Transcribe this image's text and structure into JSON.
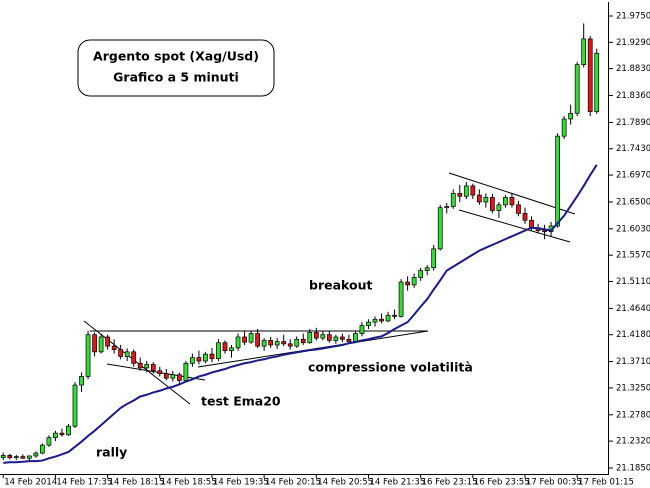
{
  "chart_data": {
    "type": "candlestick",
    "title": "Argento spot (Xag/Usd)",
    "subtitle": "Grafico a 5 minuti",
    "annotations": [
      "rally",
      "test Ema20",
      "breakout",
      "compressione volatilità"
    ],
    "categories": [
      "14 Feb 2014",
      null,
      null,
      null,
      null,
      null,
      null,
      null,
      "14 Feb 17:35",
      null,
      null,
      null,
      null,
      null,
      null,
      null,
      "14 Feb 18:15",
      null,
      null,
      null,
      null,
      null,
      null,
      null,
      "14 Feb 18:55",
      null,
      null,
      null,
      null,
      null,
      null,
      null,
      "14 Feb 19:35",
      null,
      null,
      null,
      null,
      null,
      null,
      null,
      "14 Feb 20:15",
      null,
      null,
      null,
      null,
      null,
      null,
      null,
      "14 Feb 20:55",
      null,
      null,
      null,
      null,
      null,
      null,
      null,
      "14 Feb 21:35",
      null,
      null,
      null,
      null,
      null,
      null,
      null,
      "16 Feb 23:15",
      null,
      null,
      null,
      null,
      null,
      null,
      null,
      "16 Feb 23:55",
      null,
      null,
      null,
      null,
      null,
      null,
      null,
      "17 Feb 00:35",
      null,
      null,
      null,
      null,
      null,
      null,
      null,
      "17 Feb 01:15",
      null,
      null,
      null
    ],
    "up_color": "#33dd33",
    "down_color": "#e01818",
    "open": [
      21.203,
      21.207,
      21.203,
      21.205,
      21.202,
      21.206,
      21.211,
      21.225,
      21.238,
      21.246,
      21.243,
      21.258,
      21.33,
      21.345,
      21.418,
      21.388,
      21.414,
      21.398,
      21.392,
      21.38,
      21.388,
      21.368,
      21.36,
      21.366,
      21.355,
      21.35,
      21.342,
      21.348,
      21.338,
      21.368,
      21.378,
      21.372,
      21.384,
      21.376,
      21.404,
      21.39,
      21.395,
      21.414,
      21.405,
      21.42,
      21.398,
      21.408,
      21.4,
      21.406,
      21.402,
      21.398,
      21.41,
      21.404,
      21.422,
      21.412,
      21.418,
      21.408,
      21.414,
      21.41,
      21.406,
      21.42,
      21.434,
      21.44,
      21.445,
      21.442,
      21.452,
      21.45,
      21.51,
      21.505,
      21.518,
      21.53,
      21.535,
      21.568,
      21.64,
      21.642,
      21.665,
      21.66,
      21.678,
      21.662,
      21.65,
      21.658,
      21.635,
      21.645,
      21.658,
      21.645,
      21.63,
      21.618,
      21.605,
      21.6,
      21.598,
      21.608,
      21.765,
      21.795,
      21.805,
      21.89,
      21.935,
      21.808
    ],
    "high": [
      21.212,
      21.21,
      21.208,
      21.209,
      21.207,
      21.214,
      21.228,
      21.242,
      21.25,
      21.254,
      21.262,
      21.335,
      21.352,
      21.425,
      21.422,
      21.42,
      21.418,
      21.41,
      21.4,
      21.394,
      21.392,
      21.378,
      21.372,
      21.37,
      21.362,
      21.358,
      21.355,
      21.352,
      21.372,
      21.385,
      21.39,
      21.388,
      21.395,
      21.41,
      21.408,
      21.4,
      21.42,
      21.425,
      21.425,
      21.428,
      21.412,
      21.414,
      21.412,
      21.418,
      21.41,
      21.415,
      21.42,
      21.428,
      21.43,
      21.425,
      21.424,
      21.418,
      21.42,
      21.418,
      21.425,
      21.44,
      21.445,
      21.45,
      21.455,
      21.458,
      21.462,
      21.515,
      21.52,
      21.525,
      21.535,
      21.54,
      21.575,
      21.645,
      21.648,
      21.672,
      21.68,
      21.685,
      21.682,
      21.672,
      21.665,
      21.664,
      21.65,
      21.662,
      21.665,
      21.652,
      21.64,
      21.625,
      21.612,
      21.61,
      21.615,
      21.77,
      21.8,
      21.82,
      21.895,
      21.962,
      21.94,
      21.918
    ],
    "low": [
      21.199,
      21.2,
      21.199,
      21.201,
      21.198,
      21.203,
      21.209,
      21.222,
      21.232,
      21.24,
      21.241,
      21.255,
      21.318,
      21.34,
      21.38,
      21.385,
      21.392,
      21.385,
      21.375,
      21.372,
      21.362,
      21.355,
      21.352,
      21.35,
      21.345,
      21.338,
      21.336,
      21.33,
      21.336,
      21.362,
      21.366,
      21.368,
      21.37,
      21.372,
      21.385,
      21.378,
      21.39,
      21.4,
      21.402,
      21.395,
      21.39,
      21.395,
      21.393,
      21.398,
      21.392,
      21.395,
      21.4,
      21.402,
      21.408,
      21.408,
      21.404,
      21.402,
      21.405,
      21.402,
      21.404,
      21.415,
      21.428,
      21.432,
      21.438,
      21.44,
      21.445,
      21.448,
      21.495,
      21.5,
      21.512,
      21.522,
      21.53,
      21.565,
      21.63,
      21.638,
      21.65,
      21.655,
      21.655,
      21.645,
      21.64,
      21.63,
      21.622,
      21.64,
      21.64,
      21.625,
      21.612,
      21.6,
      21.595,
      21.585,
      21.59,
      21.605,
      21.76,
      21.785,
      21.8,
      21.885,
      21.8,
      21.804
    ],
    "close": [
      21.207,
      21.203,
      21.205,
      21.202,
      21.206,
      21.211,
      21.225,
      21.238,
      21.246,
      21.243,
      21.258,
      21.33,
      21.345,
      21.418,
      21.388,
      21.414,
      21.398,
      21.392,
      21.38,
      21.388,
      21.368,
      21.36,
      21.366,
      21.355,
      21.35,
      21.342,
      21.348,
      21.338,
      21.368,
      21.378,
      21.372,
      21.384,
      21.376,
      21.404,
      21.39,
      21.395,
      21.414,
      21.405,
      21.42,
      21.398,
      21.408,
      21.4,
      21.406,
      21.402,
      21.398,
      21.41,
      21.404,
      21.422,
      21.412,
      21.418,
      21.408,
      21.414,
      21.41,
      21.406,
      21.42,
      21.434,
      21.44,
      21.445,
      21.442,
      21.452,
      21.45,
      21.51,
      21.505,
      21.518,
      21.53,
      21.535,
      21.568,
      21.64,
      21.642,
      21.665,
      21.66,
      21.678,
      21.662,
      21.65,
      21.658,
      21.635,
      21.645,
      21.658,
      21.645,
      21.63,
      21.618,
      21.605,
      21.6,
      21.598,
      21.608,
      21.765,
      21.795,
      21.805,
      21.89,
      21.935,
      21.808,
      21.91
    ],
    "ema": {
      "color": "#1a1a8c",
      "values": [
        21.194,
        21.195,
        21.195,
        21.196,
        21.197,
        21.197,
        21.198,
        21.202,
        21.205,
        21.209,
        21.213,
        21.222,
        21.231,
        21.241,
        21.25,
        21.26,
        21.27,
        21.28,
        21.29,
        21.297,
        21.303,
        21.31,
        21.313,
        21.317,
        21.32,
        21.324,
        21.327,
        21.331,
        21.336,
        21.34,
        21.345,
        21.348,
        21.352,
        21.355,
        21.358,
        21.362,
        21.365,
        21.368,
        21.37,
        21.373,
        21.375,
        21.378,
        21.38,
        21.383,
        21.385,
        21.387,
        21.389,
        21.391,
        21.392,
        21.394,
        21.396,
        21.398,
        21.4,
        21.403,
        21.405,
        21.408,
        21.41,
        21.413,
        21.415,
        21.421,
        21.428,
        21.434,
        21.44,
        21.453,
        21.467,
        21.48,
        21.497,
        21.513,
        21.53,
        21.537,
        21.544,
        21.551,
        21.558,
        21.565,
        21.57,
        21.575,
        21.58,
        21.585,
        21.59,
        21.595,
        21.6,
        21.605,
        21.604,
        21.602,
        21.6,
        21.613,
        21.626,
        21.643,
        21.66,
        21.678,
        21.697,
        21.715
      ]
    },
    "ylim": [
      21.1745,
      21.996
    ],
    "yticks": [
      {
        "value": 21.975,
        "label": "21.9750"
      },
      {
        "value": 21.929,
        "label": "21.9290"
      },
      {
        "value": 21.883,
        "label": "21.8830"
      },
      {
        "value": 21.836,
        "label": "21.8360"
      },
      {
        "value": 21.789,
        "label": "21.7890"
      },
      {
        "value": 21.743,
        "label": "21.7430"
      },
      {
        "value": 21.697,
        "label": "21.6970"
      },
      {
        "value": 21.65,
        "label": "21.6500"
      },
      {
        "value": 21.603,
        "label": "21.6030"
      },
      {
        "value": 21.557,
        "label": "21.5570"
      },
      {
        "value": 21.511,
        "label": "21.5110"
      },
      {
        "value": 21.464,
        "label": "21.4640"
      },
      {
        "value": 21.418,
        "label": "21.4180"
      },
      {
        "value": 21.371,
        "label": "21.3710"
      },
      {
        "value": 21.325,
        "label": "21.3250"
      },
      {
        "value": 21.278,
        "label": "21.2780"
      },
      {
        "value": 21.232,
        "label": "21.2320"
      },
      {
        "value": 21.185,
        "label": "21.1850"
      }
    ]
  }
}
